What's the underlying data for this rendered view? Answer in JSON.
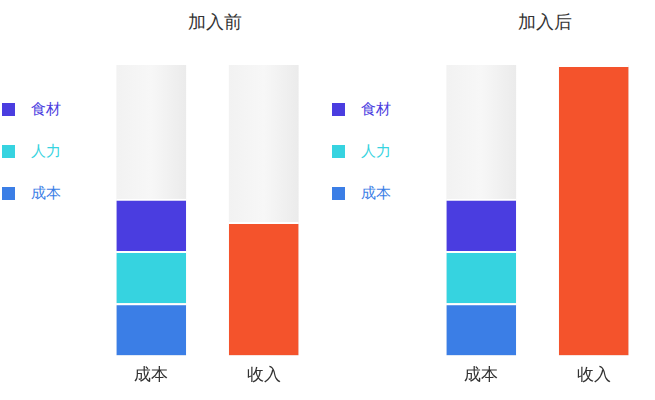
{
  "chart_data": [
    {
      "type": "bar",
      "title": "加入前",
      "categories": [
        "成本",
        "收入"
      ],
      "stacked": true,
      "legend": "left",
      "tick_labels": "x",
      "ylim": [
        0,
        100
      ],
      "series": [
        {
          "name": "食材",
          "color": "#4a3de0",
          "values": [
            18,
            null
          ]
        },
        {
          "name": "人力",
          "color": "#36d3e0",
          "values": [
            18,
            null
          ]
        },
        {
          "name": "成本",
          "color": "#3b7ee6",
          "values": [
            18,
            null
          ]
        },
        {
          "color": "#f4532c",
          "values": [
            null,
            46
          ]
        }
      ]
    },
    {
      "type": "bar",
      "title": "加入后",
      "categories": [
        "成本",
        "收入"
      ],
      "stacked": true,
      "legend": "left",
      "tick_labels": "x",
      "ylim": [
        0,
        100
      ],
      "series": [
        {
          "name": "食材",
          "color": "#4a3de0",
          "values": [
            18,
            null
          ]
        },
        {
          "name": "人力",
          "color": "#36d3e0",
          "values": [
            18,
            null
          ]
        },
        {
          "name": "成本",
          "color": "#3b7ee6",
          "values": [
            18,
            null
          ]
        },
        {
          "color": "#f4532c",
          "values": [
            null,
            100
          ]
        }
      ]
    }
  ]
}
